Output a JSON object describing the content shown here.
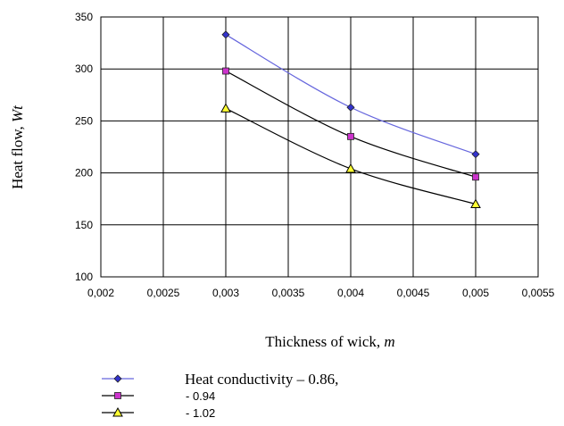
{
  "chart_data": {
    "type": "line",
    "xlabel_prefix": "Thickness of wick, ",
    "xlabel_unit": "m",
    "ylabel_prefix": "Heat flow, ",
    "ylabel_unit": "Wt",
    "xlim": [
      0.002,
      0.0055
    ],
    "ylim": [
      100,
      350
    ],
    "x_ticks": [
      0.002,
      0.0025,
      0.003,
      0.0035,
      0.004,
      0.0045,
      0.005,
      0.0055
    ],
    "x_tick_labels": [
      "0,002",
      "0,0025",
      "0,003",
      "0,0035",
      "0,004",
      "0,0045",
      "0,005",
      "0,0055"
    ],
    "y_ticks": [
      100,
      150,
      200,
      250,
      300,
      350
    ],
    "y_tick_labels": [
      "100",
      "150",
      "200",
      "250",
      "300",
      "350"
    ],
    "grid": true,
    "legend_position": "bottom",
    "series": [
      {
        "name": "Heat conductivity – 0.86,",
        "x": [
          0.003,
          0.004,
          0.005
        ],
        "y": [
          333,
          263,
          218
        ],
        "color": "#3333cc",
        "line_color": "#6666dd",
        "marker": "diamond"
      },
      {
        "name": "- 0.94",
        "x": [
          0.003,
          0.004,
          0.005
        ],
        "y": [
          298,
          235,
          196
        ],
        "color": "#cc33cc",
        "line_color": "#000000",
        "marker": "square"
      },
      {
        "name": "- 1.02",
        "x": [
          0.003,
          0.004,
          0.005
        ],
        "y": [
          262,
          204,
          170
        ],
        "color": "#ffff33",
        "line_color": "#000000",
        "marker": "triangle"
      }
    ]
  }
}
